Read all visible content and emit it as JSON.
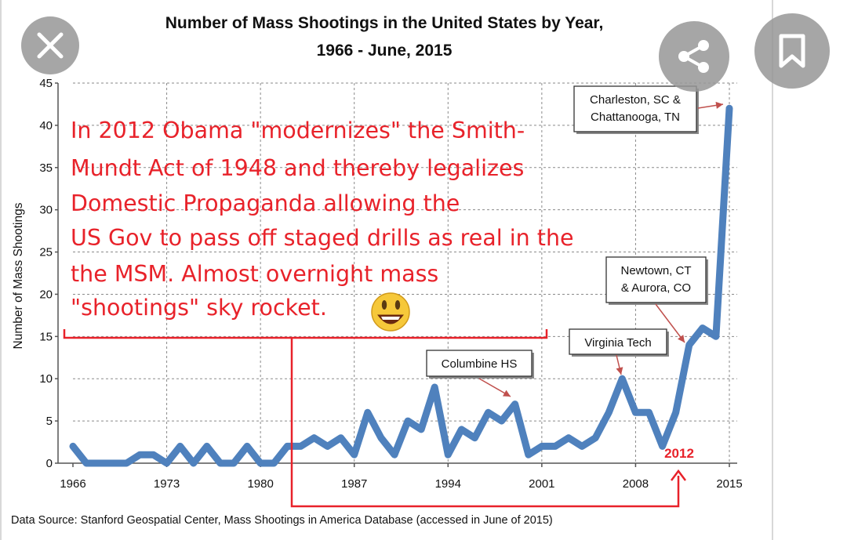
{
  "chart_data": {
    "type": "line",
    "title_line1": "Number of Mass Shootings in the United States by Year,",
    "title_line2": "1966 - June, 2015",
    "xlabel": "",
    "ylabel": "Number of Mass Shootings",
    "xlim": [
      1966,
      2015
    ],
    "ylim": [
      0,
      45
    ],
    "y_ticks": [
      "0",
      "5",
      "10",
      "15",
      "20",
      "25",
      "30",
      "35",
      "40",
      "45"
    ],
    "x_ticks": [
      "1966",
      "1973",
      "1980",
      "1987",
      "1994",
      "2001",
      "2008",
      "2015"
    ],
    "grid": "dashed",
    "line_color": "#4f81bd",
    "series": [
      {
        "name": "",
        "x": [
          1966,
          1967,
          1968,
          1969,
          1970,
          1971,
          1972,
          1973,
          1974,
          1975,
          1976,
          1977,
          1978,
          1979,
          1980,
          1981,
          1982,
          1983,
          1984,
          1985,
          1986,
          1987,
          1988,
          1989,
          1990,
          1991,
          1992,
          1993,
          1994,
          1995,
          1996,
          1997,
          1998,
          1999,
          2000,
          2001,
          2002,
          2003,
          2004,
          2005,
          2006,
          2007,
          2008,
          2009,
          2010,
          2011,
          2012,
          2013,
          2014,
          2015
        ],
        "values": [
          2,
          0,
          0,
          0,
          0,
          1,
          1,
          0,
          2,
          0,
          2,
          0,
          0,
          2,
          0,
          0,
          2,
          2,
          3,
          2,
          3,
          1,
          6,
          3,
          1,
          5,
          4,
          9,
          1,
          4,
          3,
          6,
          5,
          7,
          1,
          2,
          2,
          3,
          2,
          3,
          6,
          10,
          6,
          6,
          2,
          6,
          14,
          16,
          15,
          42
        ]
      }
    ],
    "annotations": {
      "charleston": [
        "Charleston, SC &",
        "Chattanooga, TN"
      ],
      "newtown": [
        "Newtown, CT",
        "& Aurora, CO"
      ],
      "virginia": "Virginia Tech",
      "columbine": "Columbine HS"
    },
    "overlay_text": [
      "In 2012 Obama \"modernizes\" the Smith-",
      "Mundt Act of 1948 and thereby legalizes",
      "Domestic Propaganda allowing the",
      "US Gov to pass off staged drills as real in the",
      "the MSM. Almost overnight mass",
      "\"shootings\" sky rocket."
    ],
    "overlay_marker": "2012",
    "overlay_color": "#e8222a"
  },
  "source": "Data Source: Stanford Geospatial Center, Mass Shootings in America Database (accessed in June of 2015)",
  "buttons": {
    "close_icon": "close-icon",
    "share_icon": "share-icon",
    "bookmark_icon": "bookmark-icon"
  }
}
